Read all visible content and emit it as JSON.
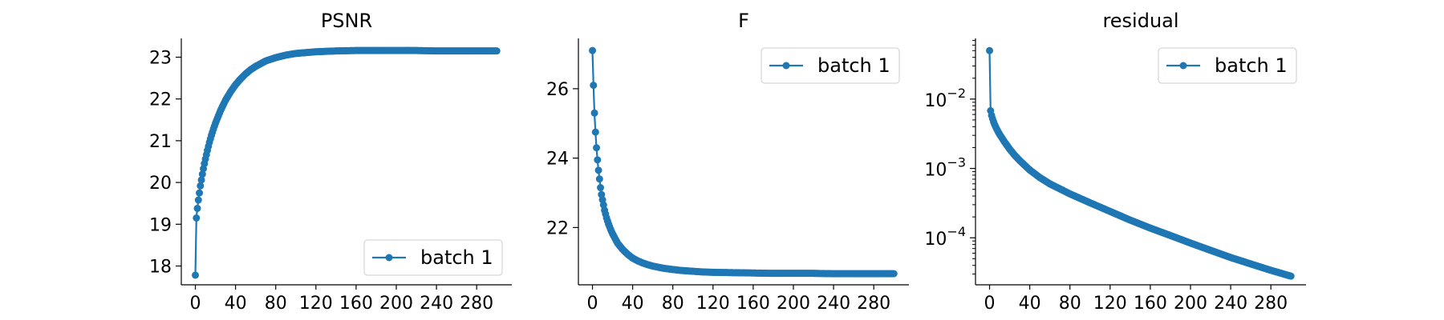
{
  "colors": {
    "series": "#1f77b4",
    "axis": "#000000",
    "legend_border": "#cccccc"
  },
  "chart_data": [
    {
      "type": "line",
      "title": "PSNR",
      "xlabel": "",
      "ylabel": "",
      "xlim": [
        -14,
        315
      ],
      "ylim": [
        17.55,
        23.45
      ],
      "xticks": [
        0,
        40,
        80,
        120,
        160,
        200,
        240,
        280
      ],
      "yticks": [
        18,
        19,
        20,
        21,
        22,
        23
      ],
      "yscale": "linear",
      "legend": {
        "location": "lower-right",
        "entries": [
          "batch 1"
        ]
      },
      "grid": false,
      "marker": "circle",
      "series": [
        {
          "name": "batch 1",
          "x": [
            0,
            1,
            2,
            3,
            4,
            5,
            6,
            7,
            8,
            9,
            10,
            12,
            14,
            16,
            18,
            20,
            25,
            30,
            35,
            40,
            45,
            50,
            55,
            60,
            70,
            80,
            90,
            100,
            110,
            120,
            140,
            160,
            180,
            200,
            220,
            240,
            260,
            280,
            300
          ],
          "y": [
            17.78,
            19.15,
            19.38,
            19.58,
            19.75,
            19.92,
            20.06,
            20.2,
            20.33,
            20.45,
            20.56,
            20.77,
            20.96,
            21.13,
            21.28,
            21.42,
            21.72,
            21.97,
            22.17,
            22.34,
            22.48,
            22.6,
            22.7,
            22.78,
            22.91,
            22.99,
            23.05,
            23.09,
            23.11,
            23.13,
            23.15,
            23.16,
            23.16,
            23.16,
            23.16,
            23.15,
            23.15,
            23.15,
            23.15
          ]
        }
      ]
    },
    {
      "type": "line",
      "title": "F",
      "xlabel": "",
      "ylabel": "",
      "xlim": [
        -14,
        315
      ],
      "ylim": [
        20.35,
        27.45
      ],
      "xticks": [
        0,
        40,
        80,
        120,
        160,
        200,
        240,
        280
      ],
      "yticks": [
        22,
        24,
        26
      ],
      "yscale": "linear",
      "legend": {
        "location": "upper-right",
        "entries": [
          "batch 1"
        ]
      },
      "grid": false,
      "marker": "circle",
      "series": [
        {
          "name": "batch 1",
          "x": [
            0,
            1,
            2,
            3,
            4,
            5,
            6,
            7,
            8,
            9,
            10,
            12,
            14,
            16,
            18,
            20,
            25,
            30,
            35,
            40,
            45,
            50,
            55,
            60,
            70,
            80,
            90,
            100,
            110,
            120,
            140,
            160,
            180,
            200,
            220,
            240,
            260,
            280,
            300
          ],
          "y": [
            27.1,
            26.1,
            25.3,
            24.75,
            24.3,
            23.95,
            23.65,
            23.4,
            23.15,
            22.95,
            22.8,
            22.5,
            22.28,
            22.1,
            21.95,
            21.82,
            21.55,
            21.37,
            21.23,
            21.12,
            21.04,
            20.98,
            20.93,
            20.89,
            20.83,
            20.79,
            20.76,
            20.74,
            20.72,
            20.71,
            20.7,
            20.69,
            20.68,
            20.68,
            20.68,
            20.67,
            20.67,
            20.67,
            20.67
          ]
        }
      ]
    },
    {
      "type": "line",
      "title": "residual",
      "xlabel": "",
      "ylabel": "",
      "xlim": [
        -14,
        315
      ],
      "ylim": [
        2.1e-05,
        0.075
      ],
      "xticks": [
        0,
        40,
        80,
        120,
        160,
        200,
        240,
        280
      ],
      "yticks": [
        0.0001,
        0.001,
        0.01
      ],
      "ytick_labels": [
        {
          "base": "10",
          "exp": "−4"
        },
        {
          "base": "10",
          "exp": "−3"
        },
        {
          "base": "10",
          "exp": "−2"
        }
      ],
      "yscale": "log",
      "legend": {
        "location": "upper-right",
        "entries": [
          "batch 1"
        ]
      },
      "grid": false,
      "marker": "circle",
      "series": [
        {
          "name": "batch 1",
          "x": [
            0,
            1,
            2,
            3,
            4,
            5,
            6,
            8,
            10,
            12,
            15,
            20,
            25,
            30,
            40,
            50,
            60,
            80,
            100,
            120,
            140,
            160,
            180,
            200,
            220,
            240,
            260,
            280,
            300
          ],
          "y": [
            0.05,
            0.0068,
            0.0058,
            0.0052,
            0.0047,
            0.0043,
            0.004,
            0.0035,
            0.0031,
            0.0028,
            0.0024,
            0.0019,
            0.00155,
            0.0013,
            0.00095,
            0.00074,
            0.0006,
            0.00043,
            0.00032,
            0.00024,
            0.00018,
            0.000138,
            0.000108,
            8.4e-05,
            6.6e-05,
            5.2e-05,
            4.2e-05,
            3.4e-05,
            2.8e-05
          ]
        }
      ]
    }
  ]
}
